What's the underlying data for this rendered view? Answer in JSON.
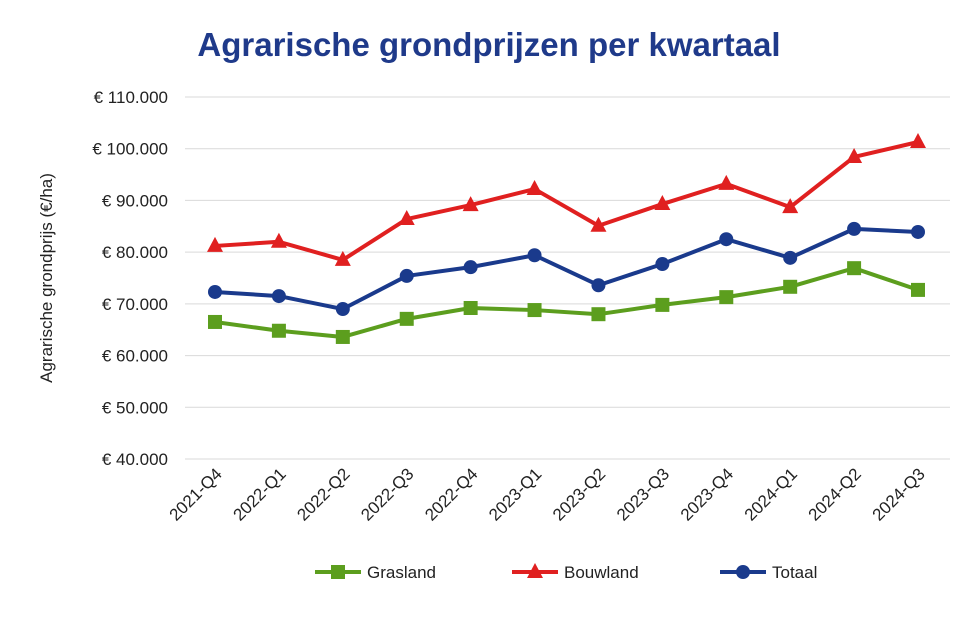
{
  "chart_data": {
    "type": "line",
    "title": "Agrarische grondprijzen per kwartaal",
    "xlabel": "",
    "ylabel": "Agrarische grondprijs (€/ha)",
    "ylim": [
      40000,
      110000
    ],
    "yticks": [
      40000,
      50000,
      60000,
      70000,
      80000,
      90000,
      100000,
      110000
    ],
    "ytick_labels": [
      "€ 40.000",
      "€ 50.000",
      "€ 60.000",
      "€ 70.000",
      "€ 80.000",
      "€ 90.000",
      "€ 100.000",
      "€ 110.000"
    ],
    "grid": true,
    "legend_position": "bottom",
    "categories": [
      "2021-Q4",
      "2022-Q1",
      "2022-Q2",
      "2022-Q3",
      "2022-Q4",
      "2023-Q1",
      "2023-Q2",
      "2023-Q3",
      "2023-Q4",
      "2024-Q1",
      "2024-Q2",
      "2024-Q3"
    ],
    "series": [
      {
        "name": "Grasland",
        "color": "#5c9e1e",
        "marker": "square",
        "values": [
          66500,
          64800,
          63600,
          67100,
          69200,
          68800,
          68000,
          69800,
          71300,
          73300,
          76900,
          72700
        ]
      },
      {
        "name": "Bouwland",
        "color": "#e02020",
        "marker": "triangle",
        "values": [
          81200,
          82000,
          78500,
          86400,
          89100,
          92200,
          85100,
          89300,
          93200,
          88700,
          98400,
          101300
        ]
      },
      {
        "name": "Totaal",
        "color": "#1a3a8c",
        "marker": "circle",
        "values": [
          72300,
          71500,
          69000,
          75400,
          77100,
          79400,
          73600,
          77700,
          82500,
          78900,
          84500,
          83900
        ]
      }
    ]
  }
}
